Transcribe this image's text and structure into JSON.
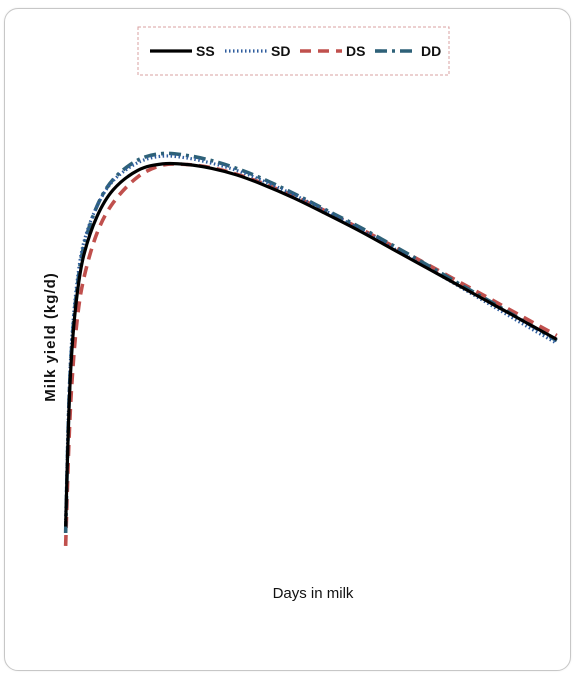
{
  "chart_data": {
    "type": "line",
    "title": "",
    "xlabel": "Days in milk",
    "ylabel": "Milk yield (kg/d)",
    "xlim": [
      0,
      305
    ],
    "ylim": [
      0,
      32
    ],
    "grid": false,
    "legend_placement": "top-center",
    "x": [
      1,
      3,
      5,
      8,
      12,
      20,
      30,
      45,
      60,
      75,
      90,
      105,
      120,
      140,
      160,
      180,
      200,
      220,
      240,
      260,
      280,
      300
    ],
    "series": [
      {
        "name": "SS",
        "color": "#000000",
        "dash": "solid",
        "values": [
          0.5,
          9.5,
          14.5,
          18.5,
          21.5,
          24.5,
          26.6,
          28.1,
          28.6,
          28.55,
          28.25,
          27.75,
          27.05,
          25.95,
          24.7,
          23.4,
          22.0,
          20.6,
          19.2,
          17.8,
          16.4,
          15.0
        ]
      },
      {
        "name": "SD",
        "color": "#2f5d9e",
        "dash": "dotted",
        "values": [
          1.0,
          10.5,
          15.5,
          19.5,
          22.5,
          25.3,
          27.3,
          28.7,
          29.2,
          29.05,
          28.65,
          28.1,
          27.35,
          26.2,
          24.9,
          23.55,
          22.1,
          20.65,
          19.15,
          17.65,
          16.15,
          14.7
        ]
      },
      {
        "name": "DS",
        "color": "#c0504d",
        "dash": "dashed",
        "values": [
          -1.0,
          7.0,
          12.0,
          16.5,
          19.7,
          23.2,
          25.6,
          27.6,
          28.5,
          28.55,
          28.3,
          27.8,
          27.15,
          26.1,
          24.9,
          23.6,
          22.25,
          20.9,
          19.5,
          18.1,
          16.7,
          15.3
        ]
      },
      {
        "name": "DD",
        "color": "#2e6178",
        "dash": "dash-dot",
        "values": [
          0.0,
          10.0,
          15.0,
          19.0,
          22.2,
          25.3,
          27.4,
          28.9,
          29.4,
          29.25,
          28.85,
          28.25,
          27.5,
          26.3,
          25.0,
          23.7,
          22.3,
          20.85,
          19.35,
          17.9,
          16.4,
          14.9
        ]
      }
    ]
  }
}
